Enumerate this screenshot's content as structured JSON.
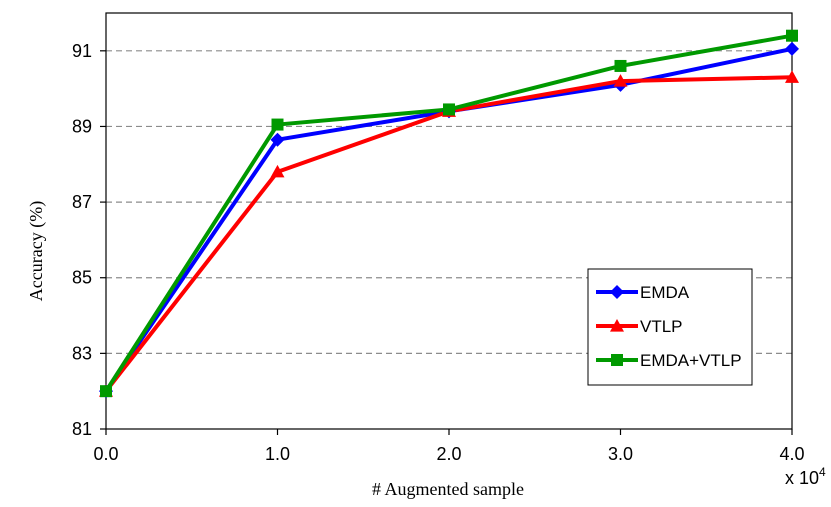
{
  "chart_data": {
    "type": "line",
    "title": "",
    "xlabel": "# Augmented sample",
    "ylabel": "Accuracy (%)",
    "x_multiplier_label": "x 10",
    "x_multiplier_exponent": "4",
    "x": [
      0,
      1,
      2,
      3,
      4
    ],
    "x_tick_labels": [
      "0.0",
      "1.0",
      "2.0",
      "3.0",
      "4.0"
    ],
    "y_ticks": [
      81,
      83,
      85,
      87,
      89,
      91
    ],
    "y_tick_labels": [
      "81",
      "83",
      "85",
      "87",
      "89",
      "91"
    ],
    "xlim": [
      0,
      4
    ],
    "ylim": [
      81,
      92
    ],
    "grid": "horizontal dashed",
    "legend_position": "lower-right",
    "series": [
      {
        "name": "EMDA",
        "values": [
          82.0,
          88.65,
          89.4,
          90.1,
          91.05
        ],
        "color": "#0000FF",
        "marker": "diamond"
      },
      {
        "name": "VTLP",
        "values": [
          82.0,
          87.8,
          89.4,
          90.2,
          90.3
        ],
        "color": "#FF0000",
        "marker": "triangle"
      },
      {
        "name": "EMDA+VTLP",
        "values": [
          82.0,
          89.05,
          89.45,
          90.6,
          91.4
        ],
        "color": "#009900",
        "marker": "square"
      }
    ]
  }
}
